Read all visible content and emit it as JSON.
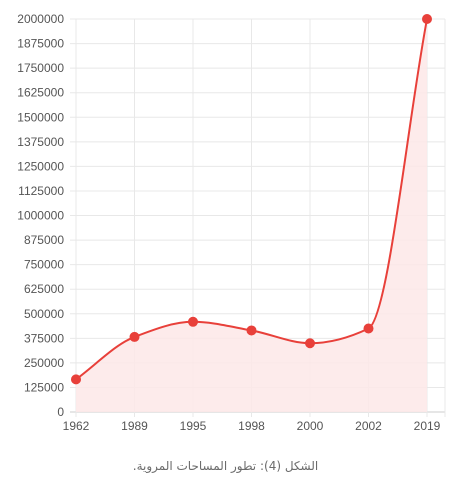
{
  "caption": "الشكل (4): تطور المساحات المروية.",
  "colors": {
    "line": "#e8403a",
    "fill": "#fde8e8",
    "grid": "#e8e8e8",
    "axis": "#cccccc",
    "tick_text": "#555555"
  },
  "chart_data": {
    "type": "area",
    "categories": [
      "1962",
      "1989",
      "1995",
      "1998",
      "2000",
      "2002",
      "2019"
    ],
    "values": [
      166000,
      382000,
      459000,
      415000,
      350000,
      425000,
      2000000
    ],
    "ylim": [
      0,
      2000000
    ],
    "yticks": [
      0,
      125000,
      250000,
      375000,
      500000,
      625000,
      750000,
      875000,
      1000000,
      1125000,
      1250000,
      1375000,
      1500000,
      1625000,
      1750000,
      1875000,
      2000000
    ],
    "grid": true,
    "title": "",
    "xlabel": "",
    "ylabel": ""
  }
}
